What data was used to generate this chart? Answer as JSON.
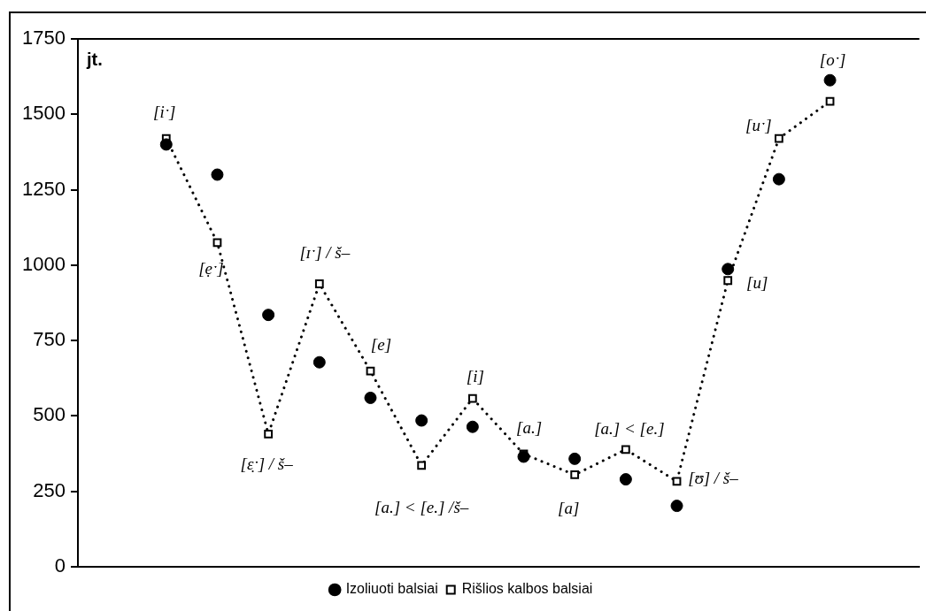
{
  "chart_data": {
    "type": "line",
    "ylabel": "jt.",
    "categories": [
      null,
      null,
      null,
      null,
      null,
      null,
      null,
      null,
      null,
      null,
      null,
      null,
      null,
      null
    ],
    "series": [
      {
        "name": "Izoliuoti balsiai",
        "type": "scatter",
        "color": "#000000",
        "marker": "circle",
        "values": [
          1400,
          1300,
          835,
          678,
          560,
          485,
          464,
          365,
          358,
          290,
          202,
          987,
          1285,
          1613
        ]
      },
      {
        "name": "Rišlios kalbos balsiai",
        "color": "#000000",
        "marker": "square",
        "line_style": "dotted",
        "values": [
          1420,
          1075,
          440,
          938,
          649,
          336,
          558,
          374,
          305,
          389,
          283,
          949,
          1420,
          1543
        ]
      }
    ],
    "annotations": [
      "[iˑ]",
      "[ẹˑ]",
      "[ɛ̣ˑ] / š–",
      "[ɪˑ] / š–",
      "[e]",
      "[a.] < [e.] /š–",
      "[i]",
      "[a.]",
      "[a]",
      "[a.] < [e.]",
      "[ʊ] / š–",
      "[u]",
      "[uˑ]",
      "[oˑ]"
    ],
    "ylim": [
      0,
      1750
    ],
    "yticks": [
      0,
      250,
      500,
      750,
      1000,
      1250,
      1500,
      1750
    ],
    "grid": false,
    "legend": "bottom",
    "tick_labels": "y"
  }
}
